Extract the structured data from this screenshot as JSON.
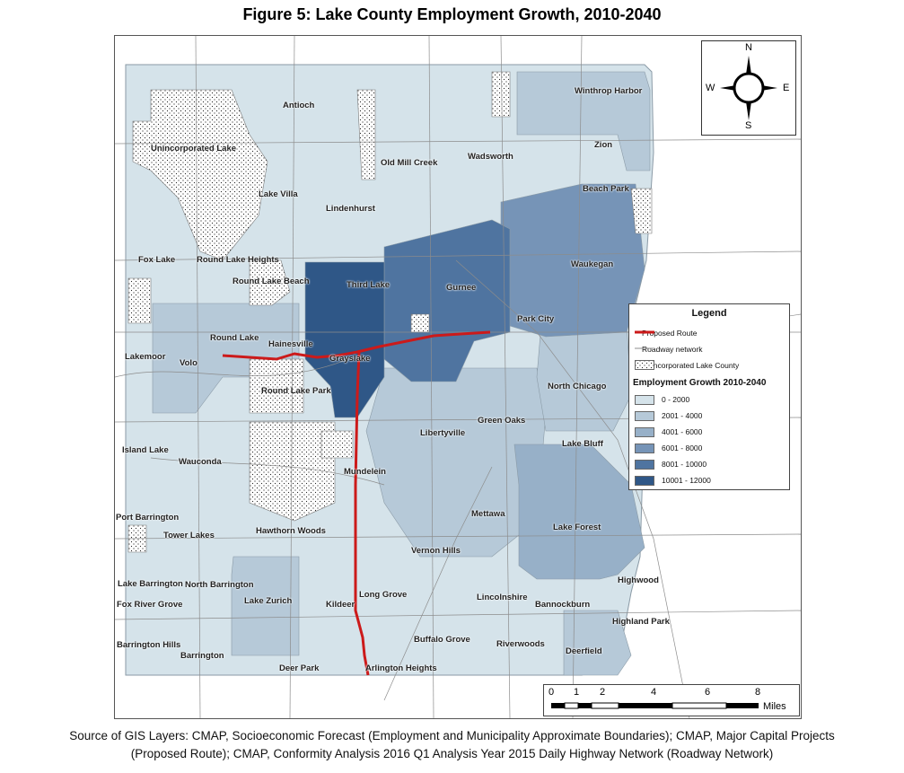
{
  "title": "Figure 5:  Lake County Employment Growth, 2010-2040",
  "places": [
    {
      "name": "Antioch"
    },
    {
      "name": "Winthrop Harbor"
    },
    {
      "name": "Unincorporated Lake"
    },
    {
      "name": "Zion"
    },
    {
      "name": "Old Mill Creek"
    },
    {
      "name": "Wadsworth"
    },
    {
      "name": "Beach Park"
    },
    {
      "name": "Lake Villa"
    },
    {
      "name": "Lindenhurst"
    },
    {
      "name": "Fox Lake"
    },
    {
      "name": "Round Lake Heights"
    },
    {
      "name": "Waukegan"
    },
    {
      "name": "Round Lake Beach"
    },
    {
      "name": "Third Lake"
    },
    {
      "name": "Gurnee"
    },
    {
      "name": "Park City"
    },
    {
      "name": "Round Lake"
    },
    {
      "name": "Hainesville"
    },
    {
      "name": "Lakemoor"
    },
    {
      "name": "Volo"
    },
    {
      "name": "Grayslake"
    },
    {
      "name": "Round Lake Park"
    },
    {
      "name": "North Chicago"
    },
    {
      "name": "Green Oaks"
    },
    {
      "name": "Libertyville"
    },
    {
      "name": "Island Lake"
    },
    {
      "name": "Lake Bluff"
    },
    {
      "name": "Wauconda"
    },
    {
      "name": "Mundelein"
    },
    {
      "name": "Port Barrington"
    },
    {
      "name": "Mettawa"
    },
    {
      "name": "Tower Lakes"
    },
    {
      "name": "Hawthorn Woods"
    },
    {
      "name": "Lake Forest"
    },
    {
      "name": "Vernon Hills"
    },
    {
      "name": "Lake Barrington"
    },
    {
      "name": "North Barrington"
    },
    {
      "name": "Highwood"
    },
    {
      "name": "Fox River Grove"
    },
    {
      "name": "Lake Zurich"
    },
    {
      "name": "Long Grove"
    },
    {
      "name": "Lincolnshire"
    },
    {
      "name": "Kildeer"
    },
    {
      "name": "Bannockburn"
    },
    {
      "name": "Highland Park"
    },
    {
      "name": "Barrington Hills"
    },
    {
      "name": "Buffalo Grove"
    },
    {
      "name": "Riverwoods"
    },
    {
      "name": "Deerfield"
    },
    {
      "name": "Barrington"
    },
    {
      "name": "Deer Park"
    },
    {
      "name": "Arlington Heights"
    }
  ],
  "compass": {
    "n": "N",
    "s": "S",
    "e": "E",
    "w": "W"
  },
  "legend": {
    "title": "Legend",
    "route": "Proposed Route",
    "roads": "Roadway network",
    "uninc": "Unincorporated Lake County",
    "growth_title": "Employment Growth 2010-2040",
    "classes": [
      {
        "label": "0 - 2000",
        "color": "#d5e3ea"
      },
      {
        "label": "2001 - 4000",
        "color": "#b6c9d8"
      },
      {
        "label": "4001 - 6000",
        "color": "#97b0c8"
      },
      {
        "label": "6001 - 8000",
        "color": "#7694b7"
      },
      {
        "label": "8001 - 10000",
        "color": "#4f74a0"
      },
      {
        "label": "10001 - 12000",
        "color": "#2f5787"
      }
    ],
    "route_color": "#cc1a1a"
  },
  "scale": {
    "ticks": [
      "0",
      "1",
      "2",
      "4",
      "6",
      "8"
    ],
    "unit": "Miles"
  },
  "caption": {
    "line1": "Source of GIS Layers:  CMAP, Socioeconomic Forecast (Employment and Municipality Approximate Boundaries); CMAP, Major Capital Projects",
    "line2": "(Proposed Route); CMAP, Conformity Analysis 2016 Q1 Analysis Year 2015 Daily Highway Network (Roadway Network)"
  }
}
